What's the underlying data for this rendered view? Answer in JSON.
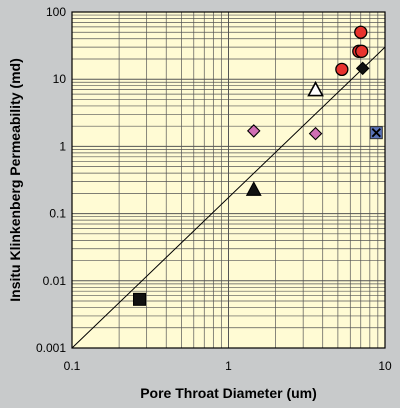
{
  "chart_data": {
    "type": "scatter",
    "title": "",
    "xlabel": "Pore Throat Diameter (um)",
    "ylabel": "Insitu Klinkenberg Permeability (md)",
    "x_scale": "log",
    "y_scale": "log",
    "xlim": [
      0.1,
      10
    ],
    "ylim": [
      0.001,
      100
    ],
    "x_ticks": [
      "0.1",
      "1",
      "10"
    ],
    "y_ticks": [
      "0.001",
      "0.01",
      "0.1",
      "1",
      "10",
      "100"
    ],
    "grid": true,
    "legend": "none",
    "reference_line": {
      "from": [
        0.1,
        0.001
      ],
      "to": [
        10,
        30
      ]
    },
    "series": [
      {
        "marker": "circle",
        "color": "#e8332e",
        "points": [
          [
            7.0,
            50
          ],
          [
            6.8,
            26
          ],
          [
            7.1,
            26
          ],
          [
            5.3,
            14
          ]
        ]
      },
      {
        "marker": "diamond",
        "color": "#111111",
        "points": [
          [
            7.2,
            14.5
          ]
        ]
      },
      {
        "marker": "triangle-open",
        "color": "#ffffff",
        "points": [
          [
            3.6,
            7
          ]
        ]
      },
      {
        "marker": "diamond",
        "color": "#d06fb4",
        "points": [
          [
            1.45,
            1.7
          ],
          [
            3.6,
            1.55
          ]
        ]
      },
      {
        "marker": "square-x",
        "color": "#5a73b8",
        "points": [
          [
            8.8,
            1.6
          ]
        ]
      },
      {
        "marker": "triangle",
        "color": "#111111",
        "points": [
          [
            1.45,
            0.23
          ]
        ]
      },
      {
        "marker": "square",
        "color": "#111111",
        "points": [
          [
            0.27,
            0.0053
          ]
        ]
      }
    ],
    "colors": {
      "background": "#c8cacb",
      "plot_area": "#fffbd4",
      "grid": "#555555"
    }
  }
}
